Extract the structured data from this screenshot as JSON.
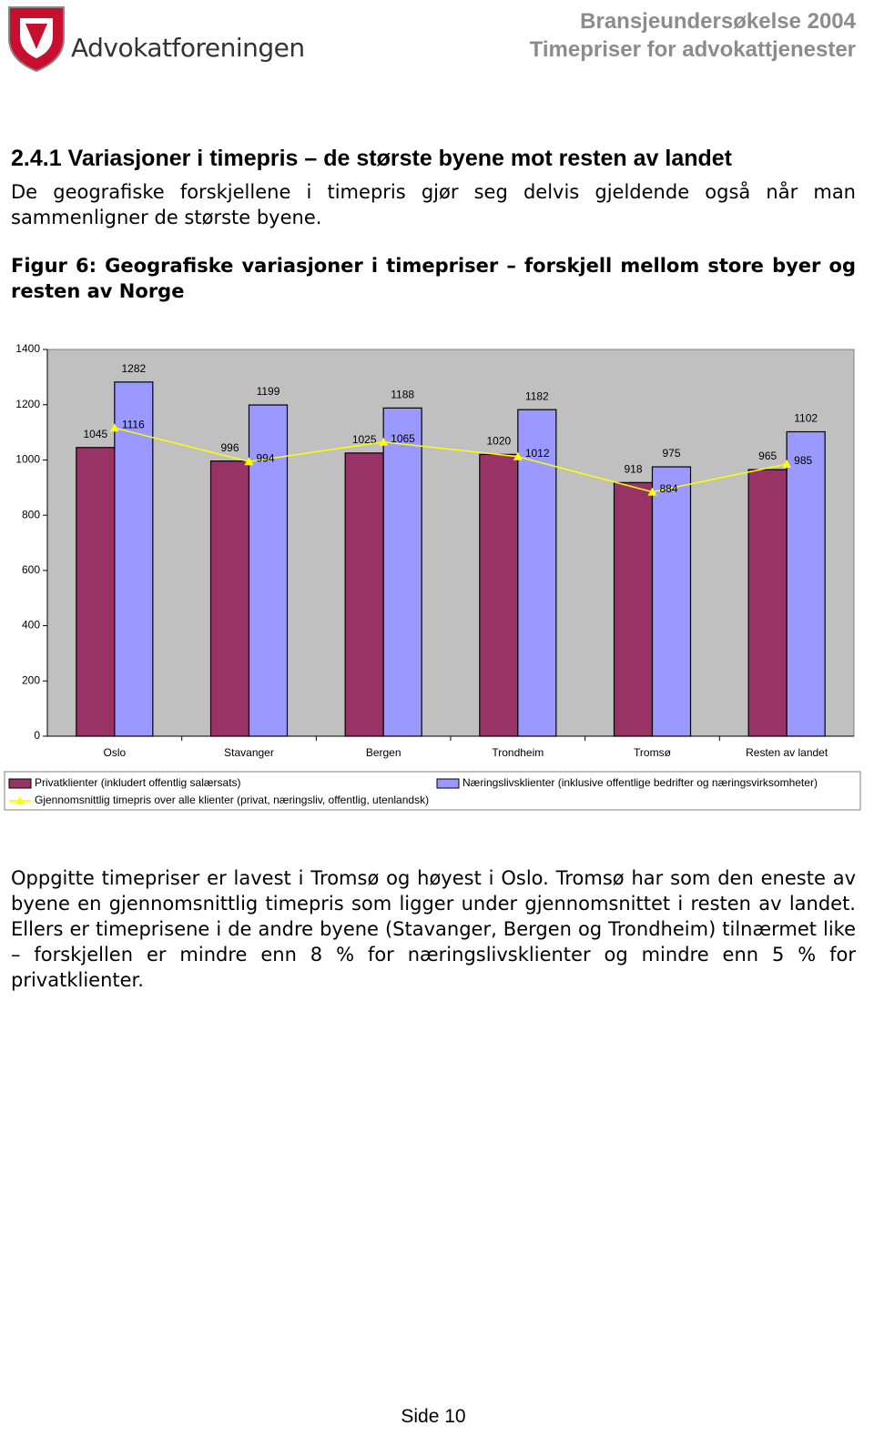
{
  "header": {
    "org": "Advokatforeningen",
    "title": "Bransjeundersøkelse 2004",
    "subtitle": "Timepriser for advokattjenester"
  },
  "section": {
    "heading": "2.4.1 Variasjoner i timepris – de største byene mot resten av landet",
    "intro": "De geografiske forskjellene i timepris gjør seg delvis gjeldende også når man sammenligner de største byene."
  },
  "figure": {
    "caption": "Figur 6: Geografiske variasjoner i timepriser – forskjell mellom store byer og resten av Norge"
  },
  "chart_data": {
    "type": "bar",
    "categories": [
      "Oslo",
      "Stavanger",
      "Bergen",
      "Trondheim",
      "Tromsø",
      "Resten av landet"
    ],
    "series": [
      {
        "name": "Privatklienter (inkludert offentlig salærsats)",
        "type": "bar",
        "color": "#993366",
        "values": [
          1045,
          996,
          1025,
          1020,
          918,
          965
        ]
      },
      {
        "name": "Næringslivsklienter (inklusive offentlige bedrifter og næringsvirksomheter)",
        "type": "bar",
        "color": "#9999ff",
        "values": [
          1282,
          1199,
          1188,
          1182,
          975,
          1102
        ]
      },
      {
        "name": "Gjennomsnittlig timepris over alle klienter (privat, næringsliv, offentlig, utenlandsk)",
        "type": "line",
        "color": "#ffff00",
        "values": [
          1116,
          994,
          1065,
          1012,
          884,
          985
        ]
      }
    ],
    "ylim": [
      0,
      1400
    ],
    "yticks": [
      0,
      200,
      400,
      600,
      800,
      1000,
      1200,
      1400
    ],
    "grid": false,
    "background": "#c0c0c0",
    "legend": "bottom"
  },
  "body": {
    "paragraph": "Oppgitte timepriser er lavest i Tromsø og høyest i Oslo. Tromsø har som den eneste av byene en gjennomsnittlig timepris som ligger under gjennomsnittet i resten av landet. Ellers er timeprisene i de andre byene (Stavanger, Bergen og Trondheim) tilnærmet like – forskjellen er mindre enn 8 % for næringslivsklienter og mindre enn 5 % for privatklienter."
  },
  "footer": {
    "page": "Side 10"
  }
}
